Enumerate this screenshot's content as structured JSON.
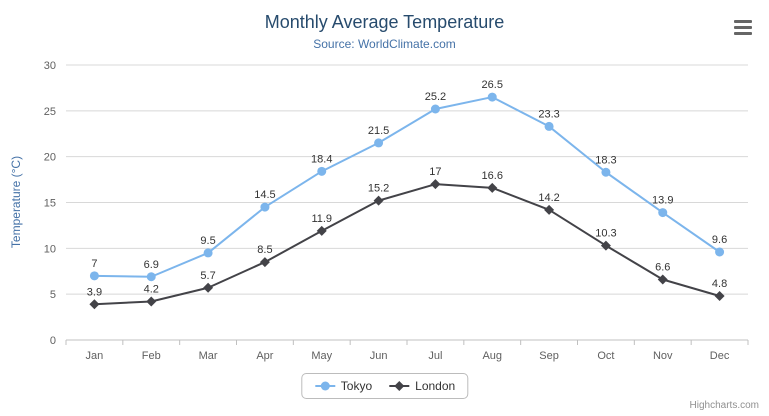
{
  "chart": {
    "title": "Monthly Average Temperature",
    "subtitle": "Source: WorldClimate.com",
    "credits_label": "Highcharts.com",
    "context_menu_icon": "hamburger-icon"
  },
  "chart_data": {
    "type": "line",
    "title": "Monthly Average Temperature",
    "subtitle": "Source: WorldClimate.com",
    "categories": [
      "Jan",
      "Feb",
      "Mar",
      "Apr",
      "May",
      "Jun",
      "Jul",
      "Aug",
      "Sep",
      "Oct",
      "Nov",
      "Dec"
    ],
    "series": [
      {
        "name": "Tokyo",
        "color": "#7cb5ec",
        "marker": "circle",
        "values": [
          7,
          6.9,
          9.5,
          14.5,
          18.4,
          21.5,
          25.2,
          26.5,
          23.3,
          18.3,
          13.9,
          9.6
        ]
      },
      {
        "name": "London",
        "color": "#434348",
        "marker": "diamond",
        "values": [
          3.9,
          4.2,
          5.7,
          8.5,
          11.9,
          15.2,
          17,
          16.6,
          14.2,
          10.3,
          6.6,
          4.8
        ]
      }
    ],
    "xlabel": "",
    "ylabel": "Temperature (°C)",
    "ylim": [
      0,
      30
    ],
    "yticks": [
      0,
      5,
      10,
      15,
      20,
      25,
      30
    ],
    "grid": true,
    "data_labels": true,
    "legend_position": "bottom",
    "colors": {
      "title": "#274b6d",
      "subtitle": "#4572a7",
      "axis_label": "#606060",
      "data_label": "#333333",
      "gridline": "#d8d8d8",
      "axis_line": "#c0c0c0"
    }
  }
}
